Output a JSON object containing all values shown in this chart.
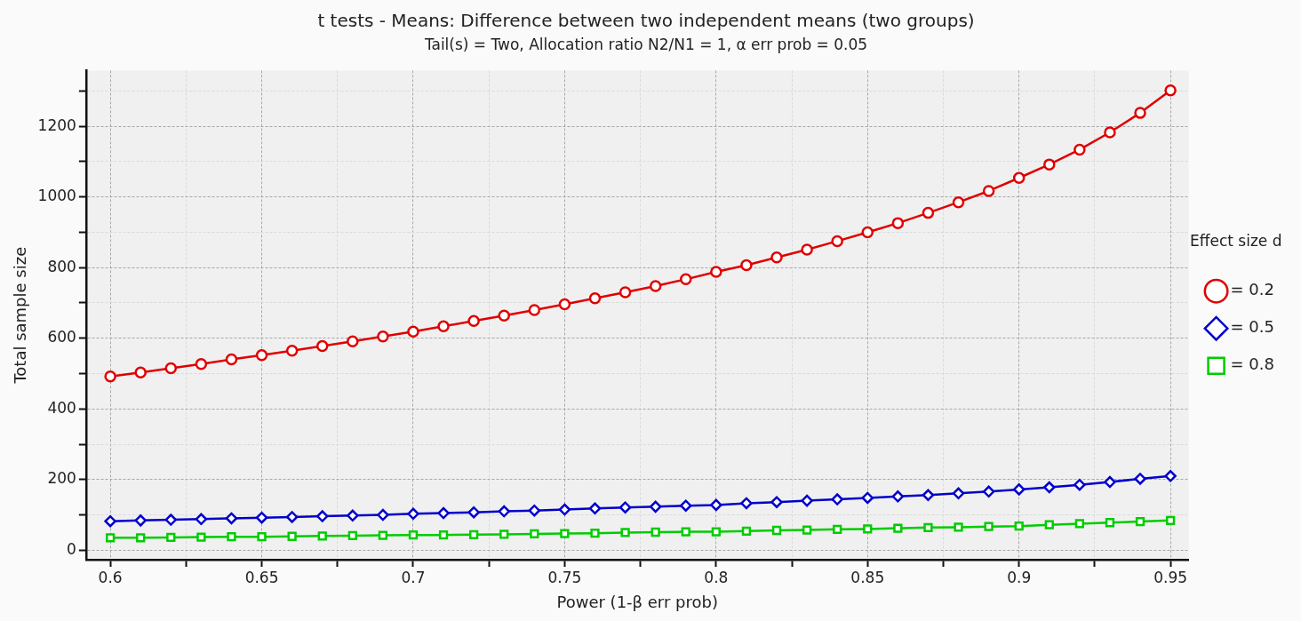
{
  "chart_data": {
    "type": "line",
    "title": "t tests - Means: Difference between two independent means (two groups)",
    "subtitle": "Tail(s) = Two, Allocation ratio N2/N1 = 1, α err prob = 0.05",
    "xlabel": "Power (1-β err prob)",
    "ylabel": "Total sample size",
    "legend_title": "Effect size d",
    "legend": "right",
    "grid": true,
    "line_style": "solid",
    "x": [
      0.6,
      0.61,
      0.62,
      0.63,
      0.64,
      0.65,
      0.66,
      0.67,
      0.68,
      0.69,
      0.7,
      0.71,
      0.72,
      0.73,
      0.74,
      0.75,
      0.76,
      0.77,
      0.78,
      0.79,
      0.8,
      0.81,
      0.82,
      0.83,
      0.84,
      0.85,
      0.86,
      0.87,
      0.88,
      0.89,
      0.9,
      0.91,
      0.92,
      0.93,
      0.94,
      0.95
    ],
    "xlim": [
      0.592,
      0.956
    ],
    "xticks": [
      0.6,
      {
        "value": 0.625,
        "label": null
      },
      0.65,
      {
        "value": 0.675,
        "label": null
      },
      0.7,
      {
        "value": 0.725,
        "label": null
      },
      0.75,
      {
        "value": 0.775,
        "label": null
      },
      0.8,
      {
        "value": 0.825,
        "label": null
      },
      0.85,
      {
        "value": 0.875,
        "label": null
      },
      0.9,
      {
        "value": 0.925,
        "label": null
      },
      0.95
    ],
    "ylim": [
      -27,
      1358
    ],
    "yticks": [
      0,
      {
        "value": 100,
        "label": null
      },
      200,
      {
        "value": 300,
        "label": null
      },
      400,
      {
        "value": 500,
        "label": null
      },
      600,
      {
        "value": 700,
        "label": null
      },
      800,
      {
        "value": 900,
        "label": null
      },
      1000,
      {
        "value": 1100,
        "label": null
      },
      1200,
      {
        "value": 1300,
        "label": null
      }
    ],
    "series": [
      {
        "name": "= 0.2",
        "color": "#e00000",
        "marker": "circle",
        "values": [
          492,
          503,
          515,
          527,
          540,
          552,
          565,
          578,
          591,
          605,
          619,
          634,
          649,
          664,
          680,
          696,
          713,
          730,
          748,
          767,
          788,
          807,
          829,
          851,
          875,
          900,
          926,
          955,
          985,
          1017,
          1054,
          1092,
          1134,
          1183,
          1238,
          1302
        ]
      },
      {
        "name": "= 0.5",
        "color": "#0000cc",
        "marker": "diamond",
        "values": [
          82,
          84,
          86,
          88,
          90,
          92,
          94,
          96,
          98,
          100,
          103,
          105,
          107,
          110,
          112,
          115,
          118,
          121,
          123,
          126,
          128,
          133,
          136,
          140,
          144,
          148,
          152,
          156,
          161,
          166,
          172,
          178,
          185,
          193,
          202,
          210
        ]
      },
      {
        "name": "= 0.8",
        "color": "#00cc00",
        "marker": "square",
        "values": [
          35,
          35,
          36,
          37,
          38,
          38,
          39,
          40,
          41,
          42,
          43,
          43,
          44,
          45,
          46,
          47,
          48,
          50,
          51,
          52,
          52,
          54,
          56,
          57,
          59,
          60,
          62,
          64,
          65,
          67,
          68,
          72,
          75,
          78,
          81,
          84
        ]
      }
    ]
  }
}
